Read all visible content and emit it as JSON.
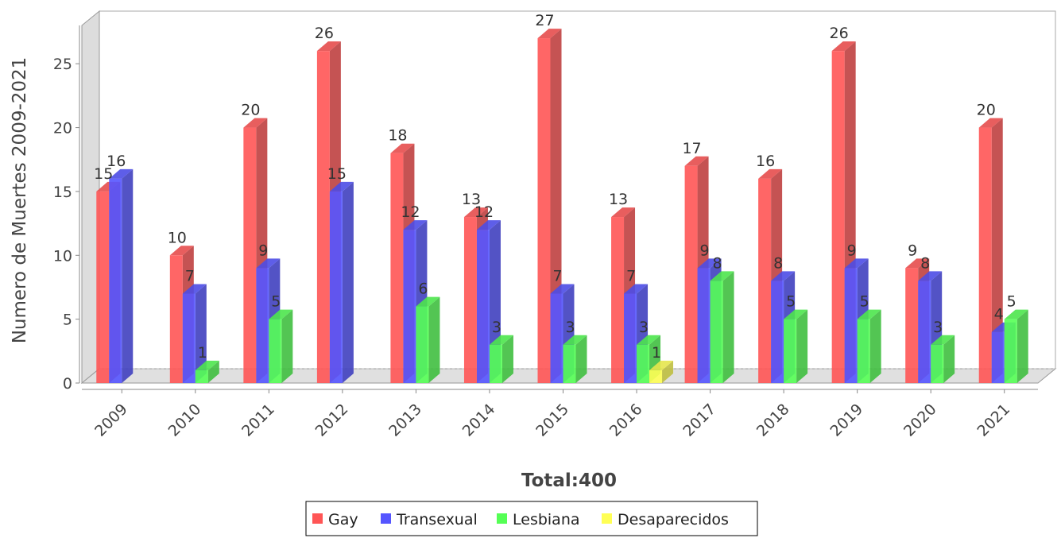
{
  "chart_data": {
    "type": "bar",
    "variant": "3d-clustered",
    "categories": [
      "2009",
      "2010",
      "2011",
      "2012",
      "2013",
      "2014",
      "2015",
      "2016",
      "2017",
      "2018",
      "2019",
      "2020",
      "2021"
    ],
    "series": [
      {
        "name": "Gay",
        "color": "#ff5555",
        "values": [
          15,
          10,
          20,
          26,
          18,
          13,
          27,
          13,
          17,
          16,
          26,
          9,
          20
        ]
      },
      {
        "name": "Transexual",
        "color": "#5555ff",
        "values": [
          16,
          7,
          9,
          15,
          12,
          12,
          7,
          7,
          9,
          8,
          9,
          8,
          4
        ]
      },
      {
        "name": "Lesbiana",
        "color": "#55ff55",
        "values": [
          0,
          1,
          5,
          0,
          6,
          3,
          3,
          3,
          8,
          5,
          5,
          3,
          5
        ]
      },
      {
        "name": "Desaparecidos",
        "color": "#ffff55",
        "values": [
          0,
          0,
          0,
          0,
          0,
          0,
          0,
          1,
          0,
          0,
          0,
          0,
          0
        ]
      }
    ],
    "ylabel": "Numero de Muertes 2009-2021",
    "xlabel": "Total:400",
    "ylim": [
      0,
      28
    ],
    "yticks": [
      0,
      5,
      10,
      15,
      20,
      25
    ],
    "legend_position": "bottom",
    "grid": false
  }
}
